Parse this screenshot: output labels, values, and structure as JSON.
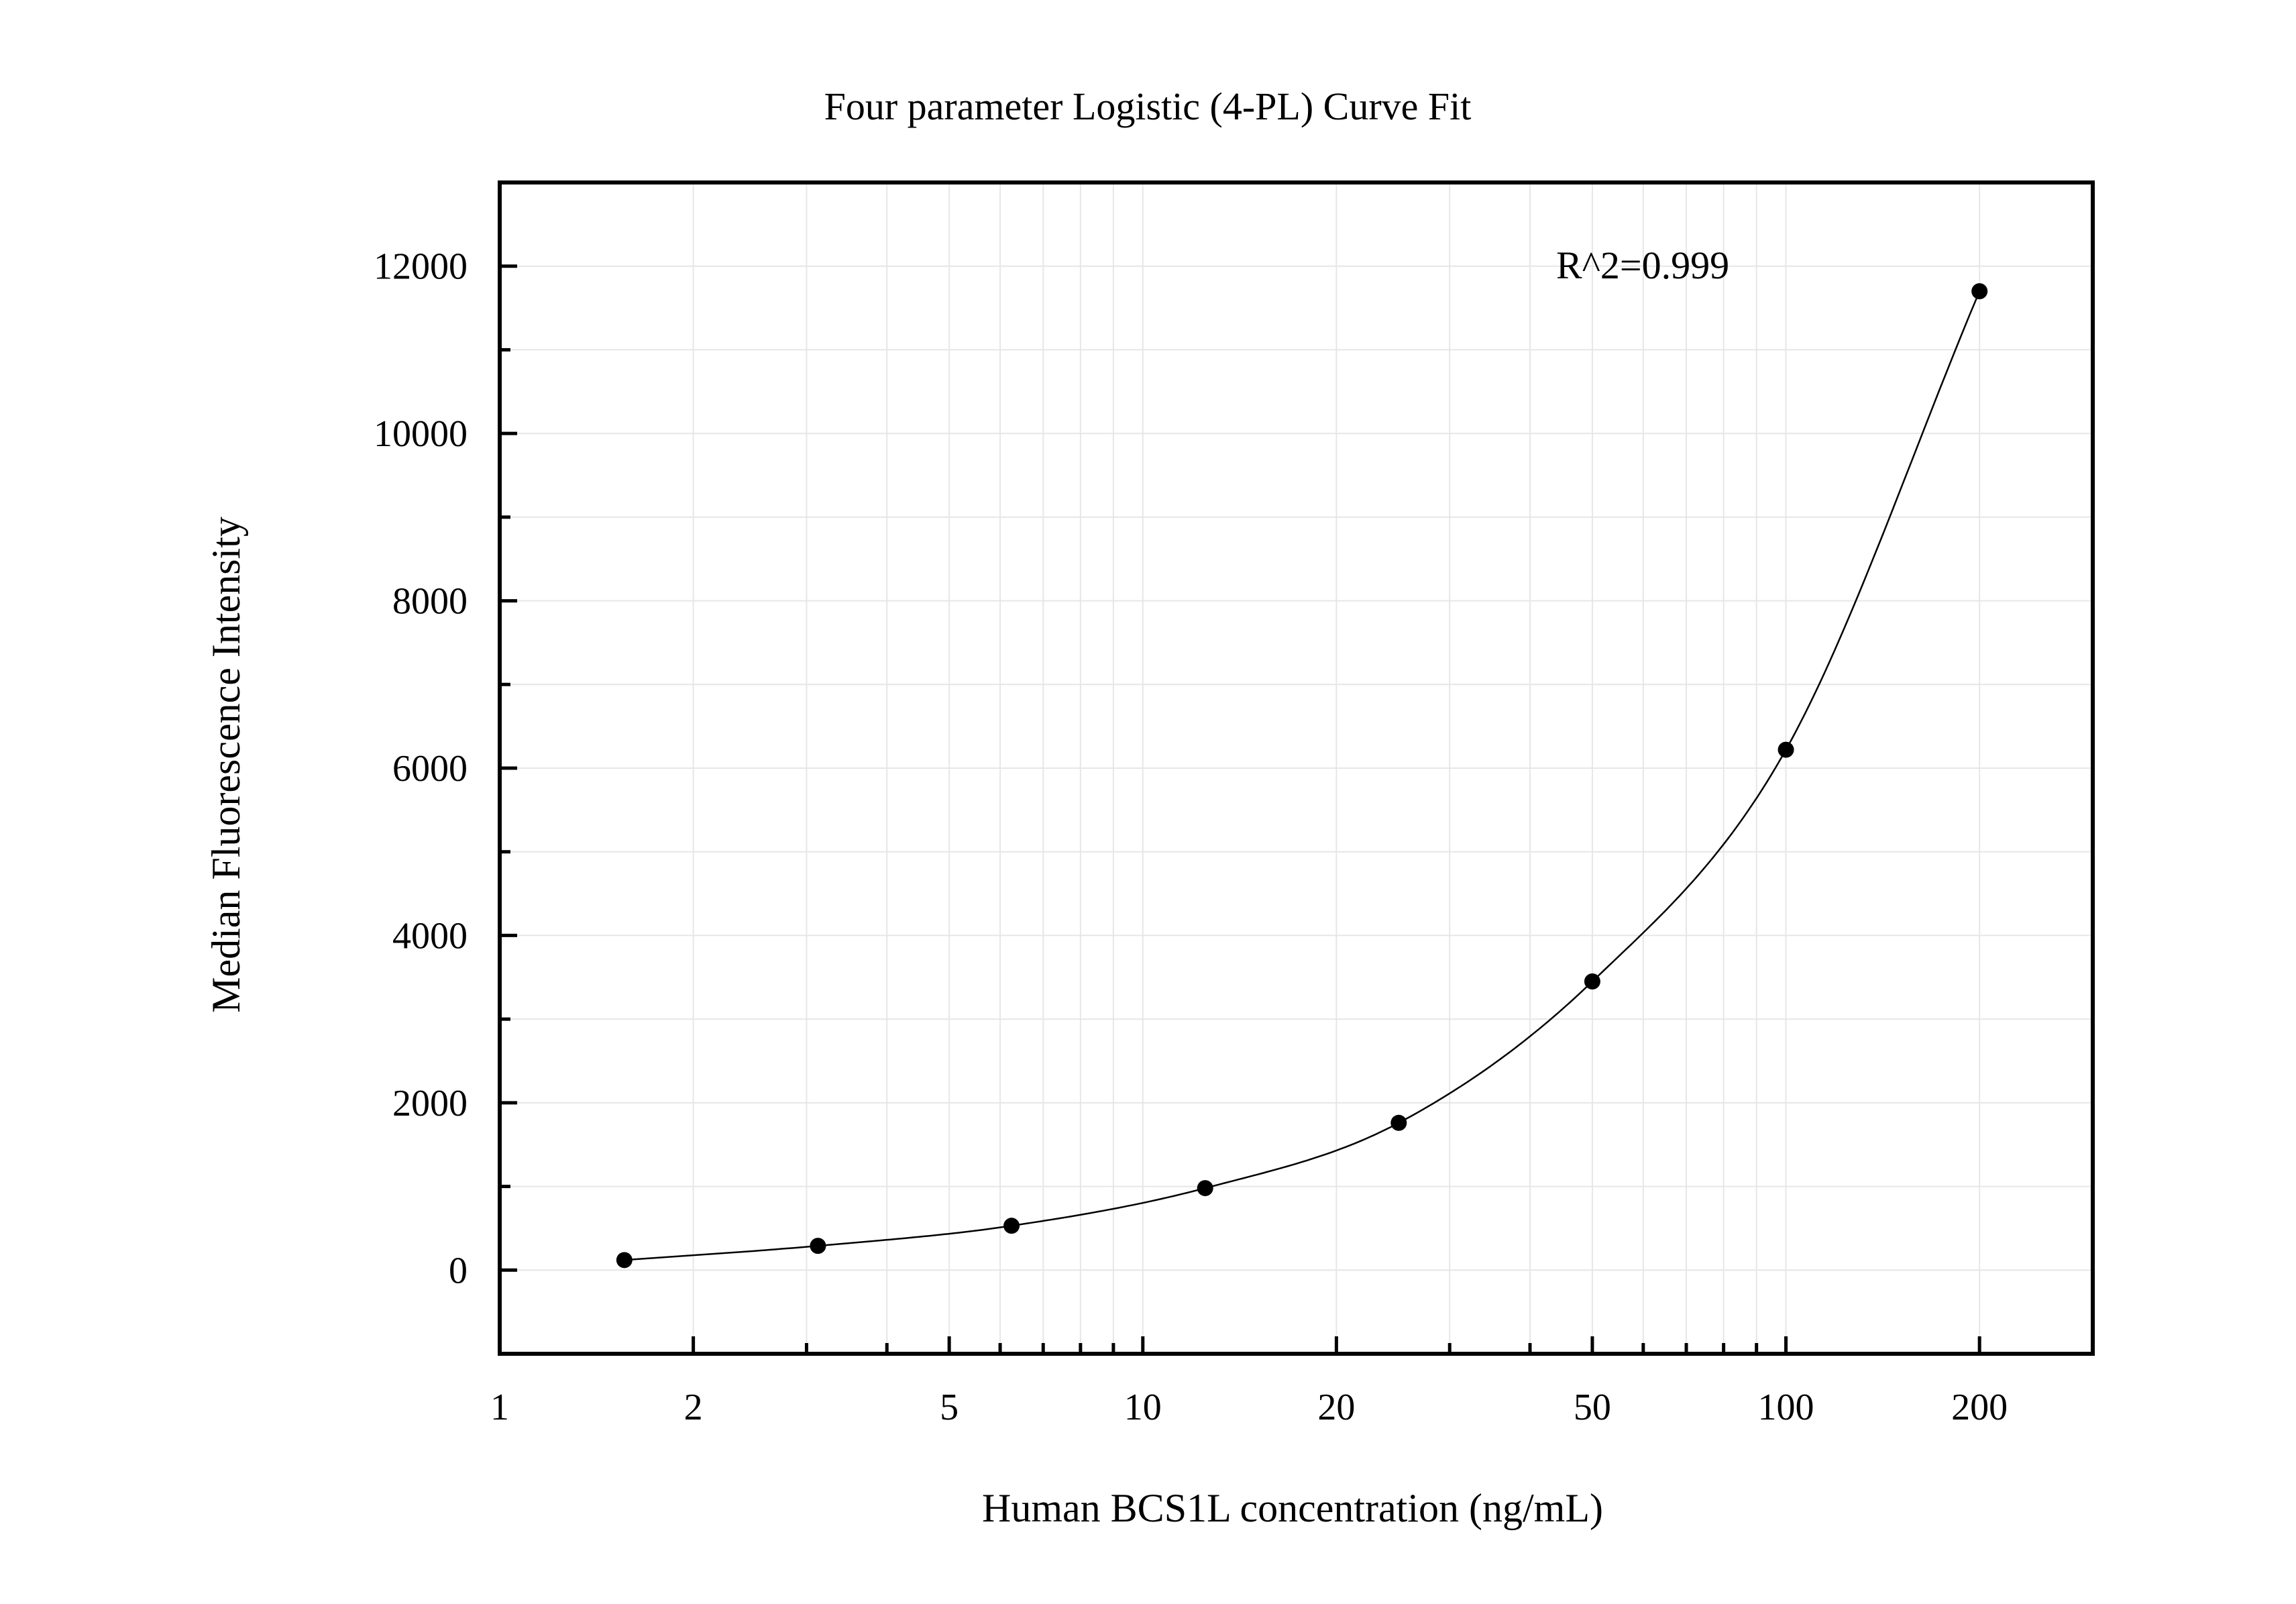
{
  "chart_data": {
    "type": "scatter",
    "title": "Four parameter Logistic (4-PL) Curve Fit",
    "xlabel": "Human BCS1L concentration (ng/mL)",
    "ylabel": "Median Fluorescence Intensity",
    "x_scale": "log",
    "xlim": [
      1,
      300
    ],
    "ylim": [
      -1000,
      13000
    ],
    "x_ticks": [
      1,
      2,
      5,
      10,
      20,
      50,
      100,
      200
    ],
    "x_tick_labels": [
      "1",
      "2",
      "5",
      "10",
      "20",
      "50",
      "100",
      "200"
    ],
    "y_ticks": [
      0,
      2000,
      4000,
      6000,
      8000,
      10000,
      12000
    ],
    "y_tick_labels": [
      "0",
      "2000",
      "4000",
      "6000",
      "8000",
      "10000",
      "12000"
    ],
    "grid": true,
    "annotation": "R^2=0.999",
    "series": [
      {
        "points": [
          {
            "x": 1.5625,
            "y": 120
          },
          {
            "x": 3.125,
            "y": 290
          },
          {
            "x": 6.25,
            "y": 530
          },
          {
            "x": 12.5,
            "y": 980
          },
          {
            "x": 25,
            "y": 1760
          },
          {
            "x": 50,
            "y": 3450
          },
          {
            "x": 100,
            "y": 6220
          },
          {
            "x": 200,
            "y": 11700
          }
        ]
      }
    ]
  }
}
